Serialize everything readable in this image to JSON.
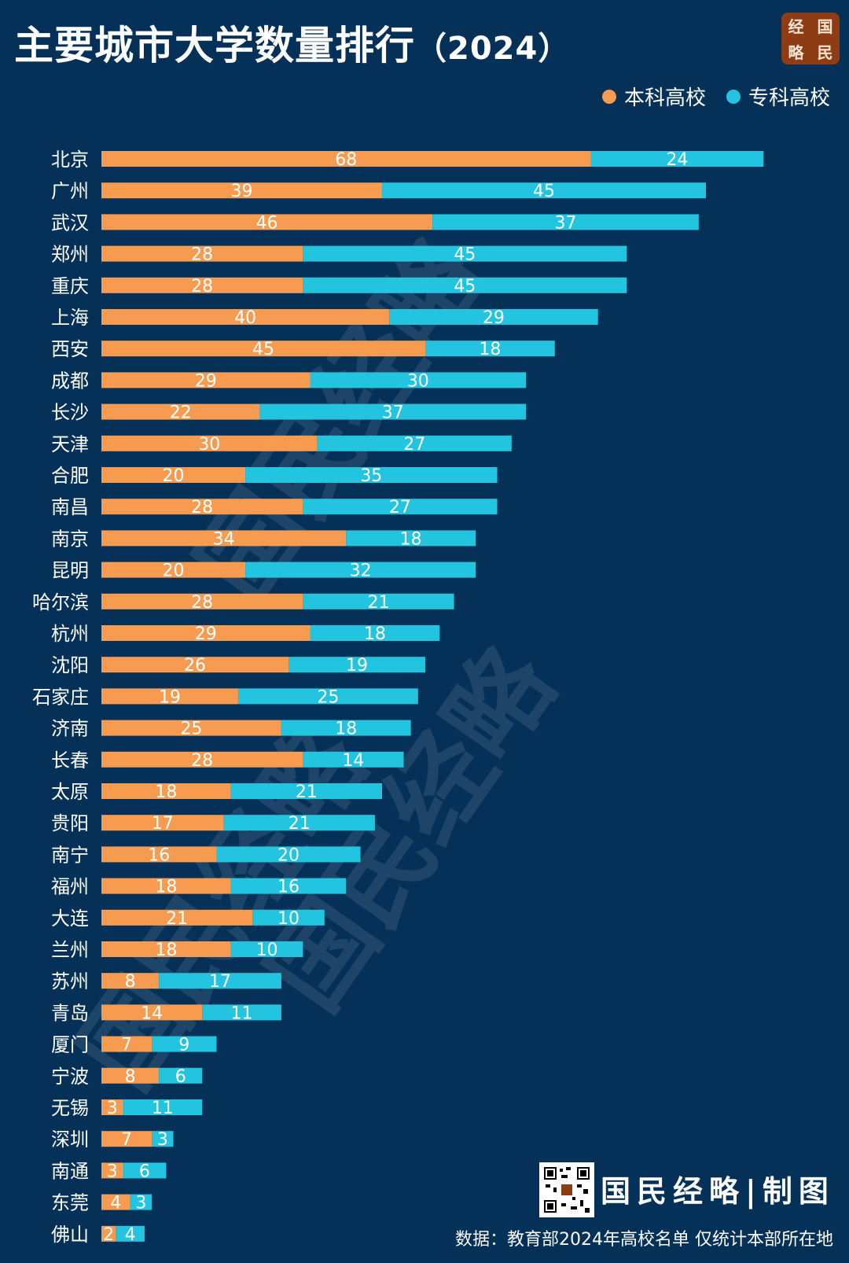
{
  "header": {
    "title": "主要城市大学数量排行",
    "year": "（2024）",
    "logo_chars": [
      "经",
      "国",
      "略",
      "民"
    ]
  },
  "legend": {
    "undergrad_label": "本科高校",
    "vocational_label": "专科高校"
  },
  "colors": {
    "background": "#053057",
    "undergrad": "#f79b50",
    "vocational": "#22c4df",
    "text": "#ffffff"
  },
  "chart_data": {
    "type": "bar",
    "orientation": "horizontal",
    "stacked": true,
    "title": "主要城市大学数量排行（2024）",
    "categories": [
      "北京",
      "广州",
      "武汉",
      "郑州",
      "重庆",
      "上海",
      "西安",
      "成都",
      "长沙",
      "天津",
      "合肥",
      "南昌",
      "南京",
      "昆明",
      "哈尔滨",
      "杭州",
      "沈阳",
      "石家庄",
      "济南",
      "长春",
      "太原",
      "贵阳",
      "南宁",
      "福州",
      "大连",
      "兰州",
      "苏州",
      "青岛",
      "厦门",
      "宁波",
      "无锡",
      "深圳",
      "南通",
      "东莞",
      "佛山"
    ],
    "series": [
      {
        "name": "本科高校",
        "values": [
          68,
          39,
          46,
          28,
          28,
          40,
          45,
          29,
          22,
          30,
          20,
          28,
          34,
          20,
          28,
          29,
          26,
          19,
          25,
          28,
          18,
          17,
          16,
          18,
          21,
          18,
          8,
          14,
          7,
          8,
          3,
          7,
          3,
          4,
          2
        ]
      },
      {
        "name": "专科高校",
        "values": [
          24,
          45,
          37,
          45,
          45,
          29,
          18,
          30,
          37,
          27,
          35,
          27,
          18,
          32,
          21,
          18,
          19,
          25,
          18,
          14,
          21,
          21,
          20,
          16,
          10,
          10,
          17,
          11,
          9,
          6,
          11,
          3,
          6,
          3,
          4
        ]
      }
    ],
    "xlim": [
      0,
      92
    ],
    "legend_position": "top-right",
    "grid": false
  },
  "watermark": {
    "text": "国民经略"
  },
  "footer": {
    "brand": "国民经略|制图",
    "source": "数据：教育部2024年高校名单 仅统计本部所在地"
  }
}
